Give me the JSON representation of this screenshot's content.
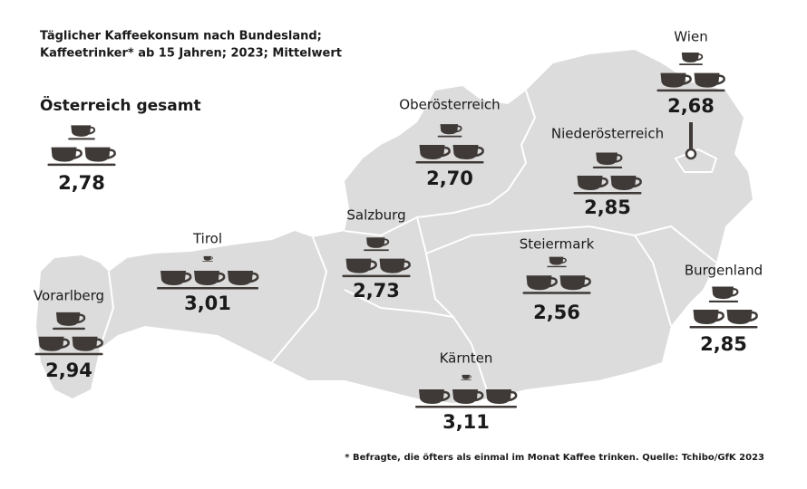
{
  "title": "Täglicher Kaffeekonsum nach Bundesland;",
  "subtitle": "Kaffeetrinker* ab 15 Jahren; 2023; Mittelwert",
  "total": {
    "name": "Österreich gesamt",
    "value": 2.78,
    "value_label": "2,78"
  },
  "regions": [
    {
      "name": "Wien",
      "value": 2.68,
      "value_label": "2,68"
    },
    {
      "name": "Oberösterreich",
      "value": 2.7,
      "value_label": "2,70"
    },
    {
      "name": "Niederösterreich",
      "value": 2.85,
      "value_label": "2,85"
    },
    {
      "name": "Salzburg",
      "value": 2.73,
      "value_label": "2,73"
    },
    {
      "name": "Tirol",
      "value": 3.01,
      "value_label": "3,01"
    },
    {
      "name": "Steiermark",
      "value": 2.56,
      "value_label": "2,56"
    },
    {
      "name": "Burgenland",
      "value": 2.85,
      "value_label": "2,85"
    },
    {
      "name": "Vorarlberg",
      "value": 2.94,
      "value_label": "2,94"
    },
    {
      "name": "Kärnten",
      "value": 3.11,
      "value_label": "3,11"
    }
  ],
  "footnote": "* Befragte, die öfters als einmal im Monat Kaffee trinken. Quelle: Tchibo/GfK 2023"
}
